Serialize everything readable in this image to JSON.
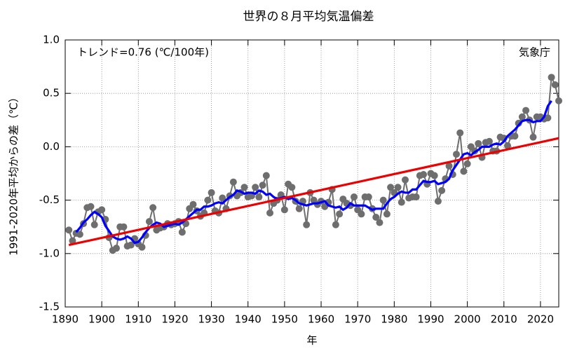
{
  "chart_data": {
    "type": "line",
    "title": "世界の８月平均気温偏差",
    "xlabel": "年",
    "ylabel": "1991-2020年平均からの差（℃）",
    "annotations": [
      "トレンド=0.76 (℃/100年)",
      "気象庁"
    ],
    "xlim": [
      1890,
      2025
    ],
    "ylim": [
      -1.5,
      1.0
    ],
    "xticks": [
      1890,
      1900,
      1910,
      1920,
      1930,
      1940,
      1950,
      1960,
      1970,
      1980,
      1990,
      2000,
      2010,
      2020
    ],
    "yticks": [
      {
        "value": 1.0,
        "label": "1.0"
      },
      0.5,
      {
        "value": 0.0,
        "label": "0.0"
      },
      -0.5,
      {
        "value": -1.0,
        "label": "-1.0"
      },
      -1.5
    ],
    "grid": true,
    "x": [
      1891,
      1892,
      1893,
      1894,
      1895,
      1896,
      1897,
      1898,
      1899,
      1900,
      1901,
      1902,
      1903,
      1904,
      1905,
      1906,
      1907,
      1908,
      1909,
      1910,
      1911,
      1912,
      1913,
      1914,
      1915,
      1916,
      1917,
      1918,
      1919,
      1920,
      1921,
      1922,
      1923,
      1924,
      1925,
      1926,
      1927,
      1928,
      1929,
      1930,
      1931,
      1932,
      1933,
      1934,
      1935,
      1936,
      1937,
      1938,
      1939,
      1940,
      1941,
      1942,
      1943,
      1944,
      1945,
      1946,
      1947,
      1948,
      1949,
      1950,
      1951,
      1952,
      1953,
      1954,
      1955,
      1956,
      1957,
      1958,
      1959,
      1960,
      1961,
      1962,
      1963,
      1964,
      1965,
      1966,
      1967,
      1968,
      1969,
      1970,
      1971,
      1972,
      1973,
      1974,
      1975,
      1976,
      1977,
      1978,
      1979,
      1980,
      1981,
      1982,
      1983,
      1984,
      1985,
      1986,
      1987,
      1988,
      1989,
      1990,
      1991,
      1992,
      1993,
      1994,
      1995,
      1996,
      1997,
      1998,
      1999,
      2000,
      2001,
      2002,
      2003,
      2004,
      2005,
      2006,
      2007,
      2008,
      2009,
      2010,
      2011,
      2012,
      2013,
      2014,
      2015,
      2016,
      2017,
      2018,
      2019,
      2020,
      2021,
      2022,
      2023,
      2024,
      2025
    ],
    "series": [
      {
        "color": "#6e6e6e",
        "markers": true,
        "values": [
          -0.78,
          -0.88,
          -0.81,
          -0.82,
          -0.72,
          -0.57,
          -0.56,
          -0.73,
          -0.61,
          -0.59,
          -0.68,
          -0.85,
          -0.97,
          -0.95,
          -0.75,
          -0.75,
          -0.93,
          -0.92,
          -0.86,
          -0.91,
          -0.94,
          -0.83,
          -0.7,
          -0.57,
          -0.78,
          -0.76,
          -0.75,
          -0.72,
          -0.73,
          -0.72,
          -0.7,
          -0.8,
          -0.72,
          -0.58,
          -0.54,
          -0.6,
          -0.65,
          -0.62,
          -0.5,
          -0.43,
          -0.6,
          -0.62,
          -0.48,
          -0.58,
          -0.46,
          -0.33,
          -0.46,
          -0.43,
          -0.38,
          -0.47,
          -0.46,
          -0.38,
          -0.47,
          -0.36,
          -0.27,
          -0.62,
          -0.53,
          -0.5,
          -0.45,
          -0.59,
          -0.35,
          -0.38,
          -0.51,
          -0.58,
          -0.51,
          -0.73,
          -0.43,
          -0.5,
          -0.54,
          -0.51,
          -0.56,
          -0.52,
          -0.4,
          -0.73,
          -0.63,
          -0.49,
          -0.53,
          -0.55,
          -0.47,
          -0.59,
          -0.63,
          -0.47,
          -0.47,
          -0.58,
          -0.66,
          -0.71,
          -0.5,
          -0.63,
          -0.38,
          -0.43,
          -0.38,
          -0.52,
          -0.31,
          -0.48,
          -0.47,
          -0.47,
          -0.27,
          -0.26,
          -0.35,
          -0.25,
          -0.27,
          -0.51,
          -0.41,
          -0.3,
          -0.18,
          -0.26,
          -0.07,
          0.13,
          -0.23,
          -0.16,
          0.0,
          -0.04,
          0.03,
          -0.1,
          0.04,
          0.05,
          -0.04,
          -0.04,
          0.09,
          0.08,
          0.01,
          0.1,
          0.1,
          0.22,
          0.28,
          0.34,
          0.25,
          0.09,
          0.28,
          0.28,
          0.26,
          0.27,
          0.65,
          0.58,
          0.43
        ]
      },
      {
        "color": "#0000ff",
        "markers": false,
        "values": [
          null,
          null,
          -0.8,
          -0.76,
          -0.71,
          -0.68,
          -0.64,
          -0.61,
          -0.63,
          -0.66,
          -0.74,
          -0.79,
          -0.84,
          -0.86,
          -0.87,
          -0.86,
          -0.84,
          -0.86,
          -0.9,
          -0.89,
          -0.85,
          -0.8,
          -0.76,
          -0.73,
          -0.71,
          -0.72,
          -0.75,
          -0.74,
          -0.73,
          -0.72,
          -0.73,
          -0.71,
          -0.68,
          -0.65,
          -0.62,
          -0.59,
          -0.59,
          -0.56,
          -0.56,
          -0.55,
          -0.53,
          -0.52,
          -0.53,
          -0.5,
          -0.47,
          -0.45,
          -0.41,
          -0.42,
          -0.44,
          -0.43,
          -0.43,
          -0.44,
          -0.41,
          -0.42,
          -0.45,
          -0.44,
          -0.47,
          -0.49,
          -0.48,
          -0.47,
          -0.49,
          -0.48,
          -0.5,
          -0.53,
          -0.54,
          -0.55,
          -0.54,
          -0.53,
          -0.53,
          -0.52,
          -0.51,
          -0.55,
          -0.56,
          -0.57,
          -0.56,
          -0.59,
          -0.57,
          -0.53,
          -0.55,
          -0.55,
          -0.55,
          -0.55,
          -0.57,
          -0.59,
          -0.58,
          -0.58,
          -0.58,
          -0.53,
          -0.49,
          -0.47,
          -0.44,
          -0.42,
          -0.43,
          -0.43,
          -0.4,
          -0.4,
          -0.36,
          -0.32,
          -0.33,
          -0.33,
          -0.32,
          -0.35,
          -0.34,
          -0.33,
          -0.3,
          -0.22,
          -0.17,
          -0.12,
          -0.07,
          -0.06,
          -0.08,
          -0.05,
          -0.03,
          0.0,
          0.0,
          0.0,
          0.02,
          0.03,
          0.02,
          0.05,
          0.1,
          0.13,
          0.16,
          0.2,
          0.24,
          0.25,
          0.25,
          0.23,
          0.24,
          0.24,
          0.28,
          0.38,
          0.43,
          null,
          null
        ]
      }
    ],
    "trend": {
      "color": "#ee0000",
      "x": [
        1891,
        2025
      ],
      "values": [
        -0.92,
        0.08
      ]
    }
  }
}
